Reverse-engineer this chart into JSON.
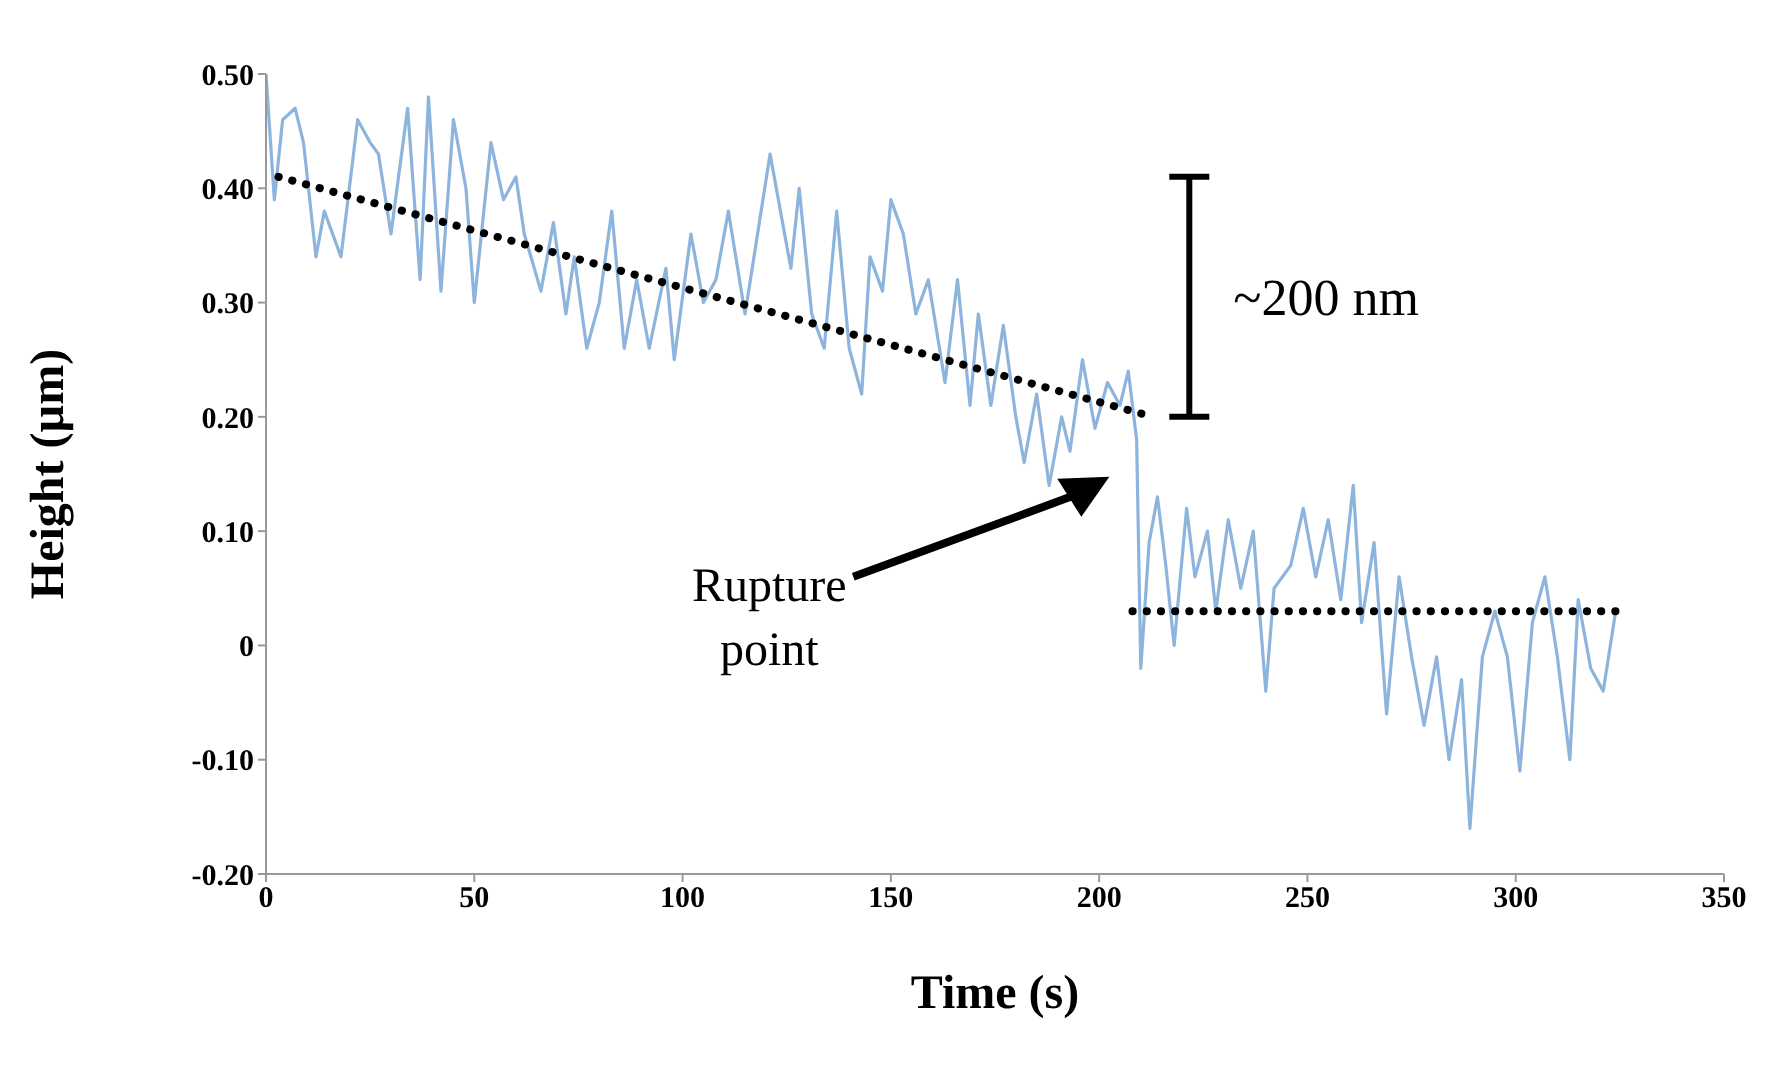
{
  "chart_data": {
    "type": "line",
    "xlabel": "Time (s)",
    "ylabel": "Height (µm)",
    "xlim": [
      0,
      350
    ],
    "xticks": [
      0,
      50,
      100,
      150,
      200,
      250,
      300,
      350
    ],
    "ylim": [
      -0.2,
      0.5
    ],
    "yticks": [
      {
        "value": -0.2,
        "label": "-0.20"
      },
      {
        "value": -0.1,
        "label": "-0.10"
      },
      0,
      {
        "value": 0.1,
        "label": "0.10"
      },
      {
        "value": 0.2,
        "label": "0.20"
      },
      {
        "value": 0.3,
        "label": "0.30"
      },
      {
        "value": 0.4,
        "label": "0.40"
      },
      {
        "value": 0.5,
        "label": "0.50"
      }
    ],
    "marker": "none",
    "series": [
      {
        "color": "#8db4dc",
        "x": [
          0,
          2,
          4,
          7,
          9,
          12,
          14,
          18,
          22,
          25,
          27,
          30,
          34,
          37,
          39,
          42,
          45,
          48,
          50,
          54,
          57,
          60,
          62,
          66,
          69,
          72,
          74,
          77,
          80,
          83,
          86,
          89,
          92,
          96,
          98,
          102,
          105,
          108,
          111,
          115,
          118,
          121,
          123,
          126,
          128,
          131,
          134,
          137,
          140,
          143,
          145,
          148,
          150,
          153,
          156,
          159,
          163,
          166,
          169,
          171,
          174,
          177,
          180,
          182,
          185,
          188,
          191,
          193,
          196,
          199,
          202,
          205,
          207,
          209,
          210,
          212,
          214,
          216,
          218,
          221,
          223,
          226,
          228,
          231,
          234,
          237,
          240,
          242,
          246,
          249,
          252,
          255,
          258,
          261,
          263,
          266,
          269,
          272,
          275,
          278,
          281,
          284,
          287,
          289,
          292,
          295,
          298,
          301,
          304,
          307,
          310,
          313,
          315,
          318,
          321,
          324
        ],
        "values": [
          0.5,
          0.39,
          0.46,
          0.47,
          0.44,
          0.34,
          0.38,
          0.34,
          0.46,
          0.44,
          0.43,
          0.36,
          0.47,
          0.32,
          0.48,
          0.31,
          0.46,
          0.4,
          0.3,
          0.44,
          0.39,
          0.41,
          0.36,
          0.31,
          0.37,
          0.29,
          0.34,
          0.26,
          0.3,
          0.38,
          0.26,
          0.32,
          0.26,
          0.33,
          0.25,
          0.36,
          0.3,
          0.32,
          0.38,
          0.29,
          0.36,
          0.43,
          0.39,
          0.33,
          0.4,
          0.29,
          0.26,
          0.38,
          0.26,
          0.22,
          0.34,
          0.31,
          0.39,
          0.36,
          0.29,
          0.32,
          0.23,
          0.32,
          0.21,
          0.29,
          0.21,
          0.28,
          0.2,
          0.16,
          0.22,
          0.14,
          0.2,
          0.17,
          0.25,
          0.19,
          0.23,
          0.21,
          0.24,
          0.18,
          -0.02,
          0.09,
          0.13,
          0.07,
          0.0,
          0.12,
          0.06,
          0.1,
          0.03,
          0.11,
          0.05,
          0.1,
          -0.04,
          0.05,
          0.07,
          0.12,
          0.06,
          0.11,
          0.04,
          0.14,
          0.02,
          0.09,
          -0.06,
          0.06,
          -0.01,
          -0.07,
          -0.01,
          -0.1,
          -0.03,
          -0.16,
          -0.01,
          0.03,
          -0.01,
          -0.11,
          0.02,
          0.06,
          -0.01,
          -0.1,
          0.04,
          -0.02,
          -0.04,
          0.03
        ]
      },
      {
        "type": "line",
        "color": "#000000",
        "line_style": "dotted",
        "x": [
          3,
          213
        ],
        "values": [
          0.41,
          0.2
        ]
      },
      {
        "type": "line",
        "color": "#000000",
        "line_style": "dotted",
        "x": [
          208,
          325
        ],
        "values": [
          0.03,
          0.03
        ]
      }
    ],
    "annotations": [
      "~200 nm",
      "Rupture point"
    ]
  }
}
